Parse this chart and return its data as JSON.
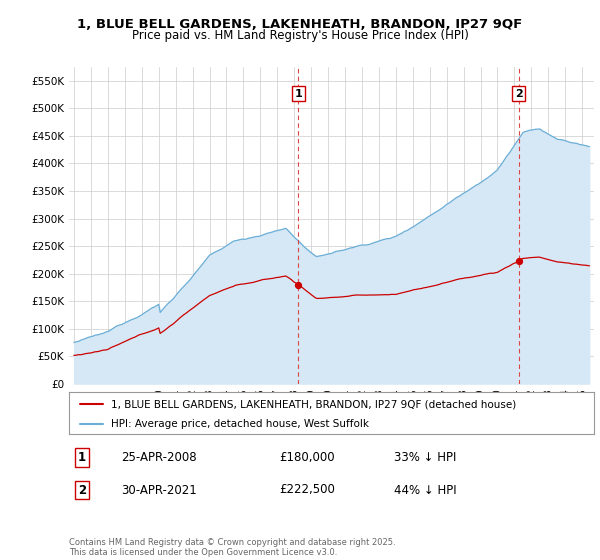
{
  "title_line1": "1, BLUE BELL GARDENS, LAKENHEATH, BRANDON, IP27 9QF",
  "title_line2": "Price paid vs. HM Land Registry's House Price Index (HPI)",
  "ytick_labels": [
    "£0",
    "£50K",
    "£100K",
    "£150K",
    "£200K",
    "£250K",
    "£300K",
    "£350K",
    "£400K",
    "£450K",
    "£500K",
    "£550K"
  ],
  "hpi_color": "#6baed6",
  "hpi_fill_color": "#d6e8f5",
  "price_color": "#cc0000",
  "vline_color": "#dd4444",
  "marker_box_color": "#cc0000",
  "grid_color": "#cccccc",
  "legend_line1": "1, BLUE BELL GARDENS, LAKENHEATH, BRANDON, IP27 9QF (detached house)",
  "legend_line2": "HPI: Average price, detached house, West Suffolk",
  "table_row1_date": "25-APR-2008",
  "table_row1_price": "£180,000",
  "table_row1_hpi": "33% ↓ HPI",
  "table_row2_date": "30-APR-2021",
  "table_row2_price": "£222,500",
  "table_row2_hpi": "44% ↓ HPI",
  "footer": "Contains HM Land Registry data © Crown copyright and database right 2025.\nThis data is licensed under the Open Government Licence v3.0.",
  "background_color": "#ffffff"
}
